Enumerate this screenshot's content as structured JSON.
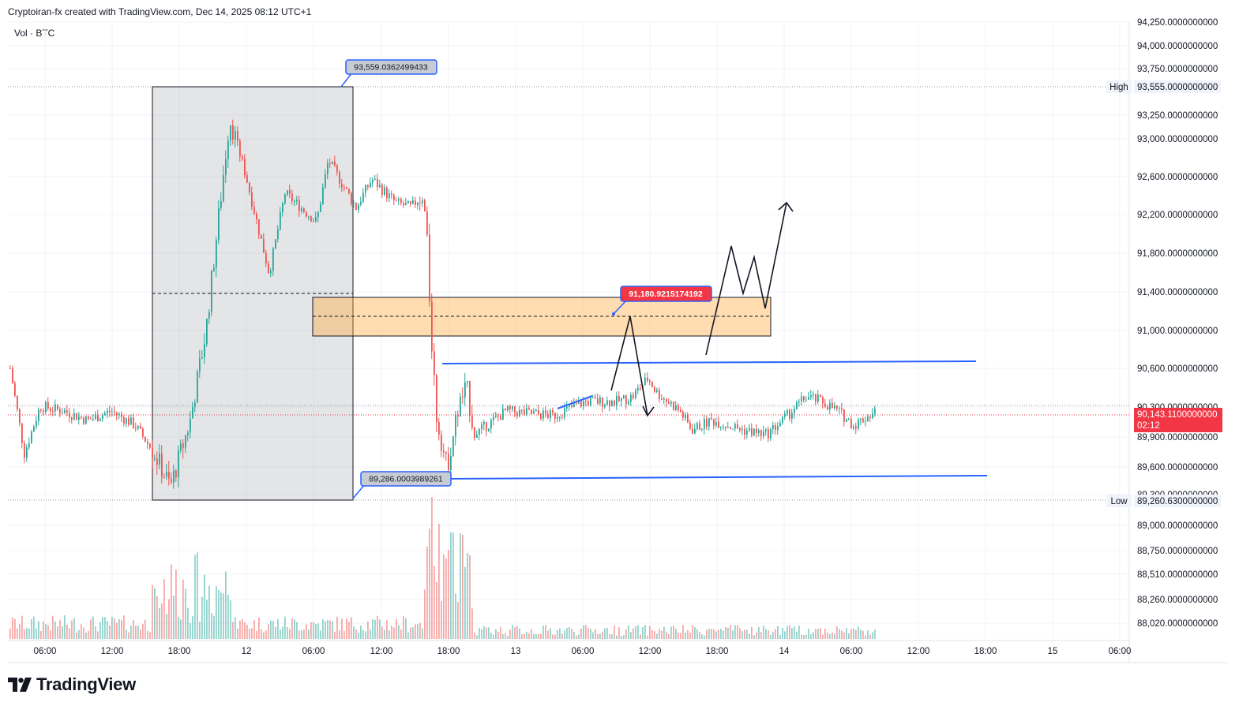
{
  "header": {
    "text": "Cryptoiran-fx created with TradingView.com, Dec 14, 2025 08:12 UTC+1"
  },
  "volume_label": "Vol · BTC",
  "brand": {
    "name": "TradingView"
  },
  "colors": {
    "up": "#26a69a",
    "down": "#ef5350",
    "blue": "#2962ff",
    "zone": "#ffd59a",
    "current": "#f23645"
  },
  "chart_data": {
    "type": "candlestick",
    "y_ticks": [
      "94,250.0000000000",
      "94,000.0000000000",
      "93,750.0000000000",
      "93,250.0000000000",
      "93,000.0000000000",
      "92,600.0000000000",
      "92,200.0000000000",
      "91,800.0000000000",
      "91,400.0000000000",
      "91,000.0000000000",
      "90,600.0000000000",
      "90,300.0000000000",
      "89,900.0000000000",
      "89,600.0000000000",
      "89,300.0000000000",
      "89,000.0000000000",
      "88,750.0000000000",
      "88,510.0000000000",
      "88,260.0000000000",
      "88,020.0000000000"
    ],
    "x_ticks": [
      "06:00",
      "12:00",
      "18:00",
      "12",
      "06:00",
      "12:00",
      "18:00",
      "13",
      "06:00",
      "12:00",
      "18:00",
      "14",
      "06:00",
      "12:00",
      "18:00",
      "15",
      "06:00"
    ],
    "high_marker": {
      "label": "High",
      "value": "93,555.0000000000"
    },
    "low_marker": {
      "label": "Low",
      "value": "89,260.6300000000"
    },
    "current_price": {
      "value": "90,143.1100000000",
      "countdown": "02:12"
    },
    "annotations": {
      "top_callout": "93,559.0362499433",
      "bottom_callout": "89,286.0003989261",
      "zone_callout": "91,180.9215174192"
    },
    "candle_summary": {
      "start_price": 90600,
      "period_high": 93555,
      "period_low": 89260.63,
      "last_price": 90143.11
    }
  }
}
